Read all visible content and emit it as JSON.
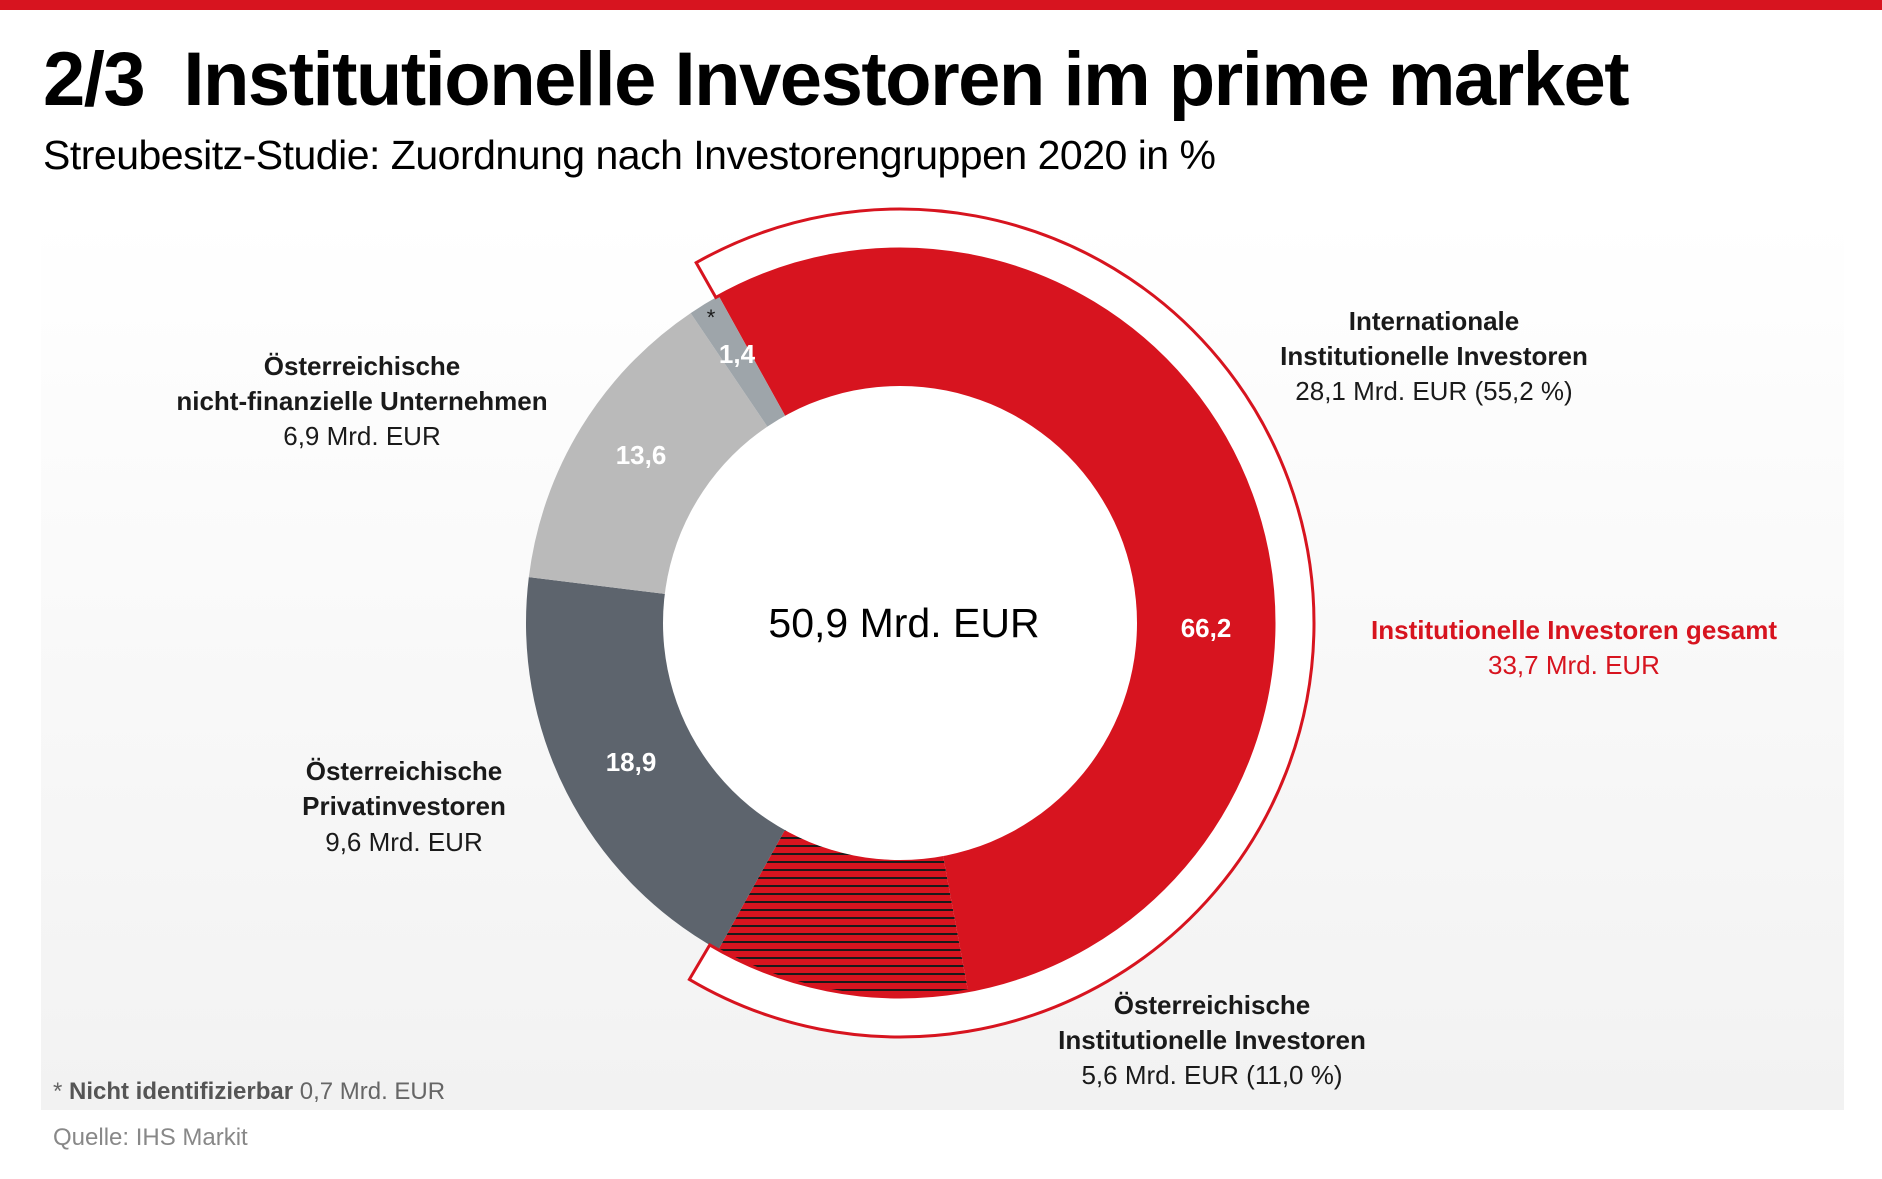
{
  "header": {
    "title": "2/3  Institutionelle Investoren im prime market",
    "subtitle": "Streubesitz-Studie: Zuordnung nach Investorengruppen 2020 in %"
  },
  "chart_data": {
    "type": "pie",
    "variant": "donut",
    "center_label": "50,9 Mrd. EUR",
    "unit": "%",
    "slices": [
      {
        "value": 55.2,
        "color": "#d7141f",
        "pattern": "none",
        "labels": [
          "Internationale",
          "Institutionelle Investoren",
          "28,1 Mrd. EUR (55,2 %)"
        ]
      },
      {
        "value": 11.0,
        "color": "#d7141f",
        "pattern": "black-horizontal-lines",
        "labels": [
          "Österreichische",
          "Institutionelle Investoren",
          "5,6 Mrd. EUR (11,0 %)"
        ]
      },
      {
        "value": 18.9,
        "color": "#5d646d",
        "data_label": "18,9",
        "labels": [
          "Österreichische",
          "Privatinvestoren",
          "9,6 Mrd. EUR"
        ]
      },
      {
        "value": 13.6,
        "color": "#bababa",
        "data_label": "13,6",
        "labels": [
          "Österreichische",
          "nicht-finanzielle Unternehmen",
          "6,9 Mrd. EUR"
        ]
      },
      {
        "value": 1.4,
        "color": "#9ea5aa",
        "data_label": "1,4",
        "marker": "*"
      }
    ],
    "group": {
      "value": 66.2,
      "data_label": "66,2",
      "labels": [
        "Institutionelle Investoren gesamt",
        "33,7 Mrd. EUR"
      ],
      "color": "#d7141f"
    }
  },
  "footnote": {
    "marker": "*",
    "bold": "Nicht identifizierbar",
    "text": "0,7 Mrd. EUR"
  },
  "source": "Quelle: IHS Markit"
}
